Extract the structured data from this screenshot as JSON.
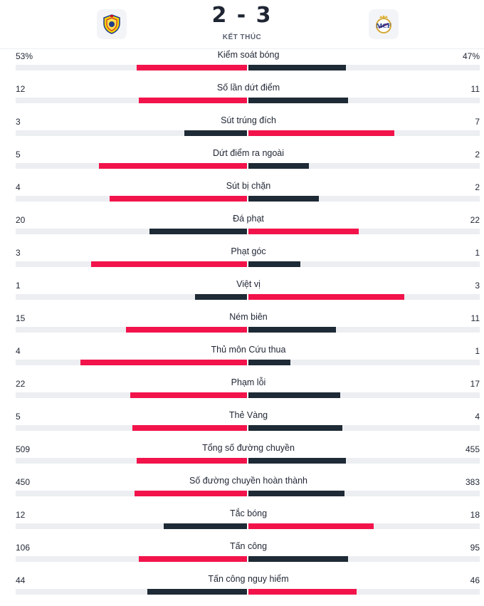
{
  "match": {
    "score": "2 - 3",
    "status": "KẾT THÚC",
    "home_logo_icon": "villarreal-crest-icon",
    "away_logo_icon": "real-madrid-crest-icon"
  },
  "colors": {
    "winner": "#f2134b",
    "loser": "#1e2a35",
    "track": "#eceef2"
  },
  "stats": [
    {
      "label": "Kiểm soát bóng",
      "home": "53%",
      "away": "47%",
      "home_fraction": 0.53,
      "away_fraction": 0.47
    },
    {
      "label": "Số lần dứt điểm",
      "home": "12",
      "away": "11",
      "home_fraction": 0.52,
      "away_fraction": 0.48
    },
    {
      "label": "Sút trúng đích",
      "home": "3",
      "away": "7",
      "home_fraction": 0.3,
      "away_fraction": 0.7
    },
    {
      "label": "Dứt điểm ra ngoài",
      "home": "5",
      "away": "2",
      "home_fraction": 0.71,
      "away_fraction": 0.29
    },
    {
      "label": "Sút bị chặn",
      "home": "4",
      "away": "2",
      "home_fraction": 0.66,
      "away_fraction": 0.34
    },
    {
      "label": "Đá phạt",
      "home": "20",
      "away": "22",
      "home_fraction": 0.47,
      "away_fraction": 0.53
    },
    {
      "label": "Phạt góc",
      "home": "3",
      "away": "1",
      "home_fraction": 0.75,
      "away_fraction": 0.25
    },
    {
      "label": "Việt vị",
      "home": "1",
      "away": "3",
      "home_fraction": 0.25,
      "away_fraction": 0.75
    },
    {
      "label": "Ném biên",
      "home": "15",
      "away": "11",
      "home_fraction": 0.58,
      "away_fraction": 0.42
    },
    {
      "label": "Thủ môn Cứu thua",
      "home": "4",
      "away": "1",
      "home_fraction": 0.8,
      "away_fraction": 0.2
    },
    {
      "label": "Phạm lỗi",
      "home": "22",
      "away": "17",
      "home_fraction": 0.56,
      "away_fraction": 0.44
    },
    {
      "label": "Thẻ Vàng",
      "home": "5",
      "away": "4",
      "home_fraction": 0.55,
      "away_fraction": 0.45
    },
    {
      "label": "Tổng số đường chuyền",
      "home": "509",
      "away": "455",
      "home_fraction": 0.53,
      "away_fraction": 0.47
    },
    {
      "label": "Số đường chuyền hoàn thành",
      "home": "450",
      "away": "383",
      "home_fraction": 0.54,
      "away_fraction": 0.46
    },
    {
      "label": "Tắc bóng",
      "home": "12",
      "away": "18",
      "home_fraction": 0.4,
      "away_fraction": 0.6
    },
    {
      "label": "Tấn công",
      "home": "106",
      "away": "95",
      "home_fraction": 0.52,
      "away_fraction": 0.48
    },
    {
      "label": "Tấn công nguy hiểm",
      "home": "44",
      "away": "46",
      "home_fraction": 0.48,
      "away_fraction": 0.52
    }
  ]
}
